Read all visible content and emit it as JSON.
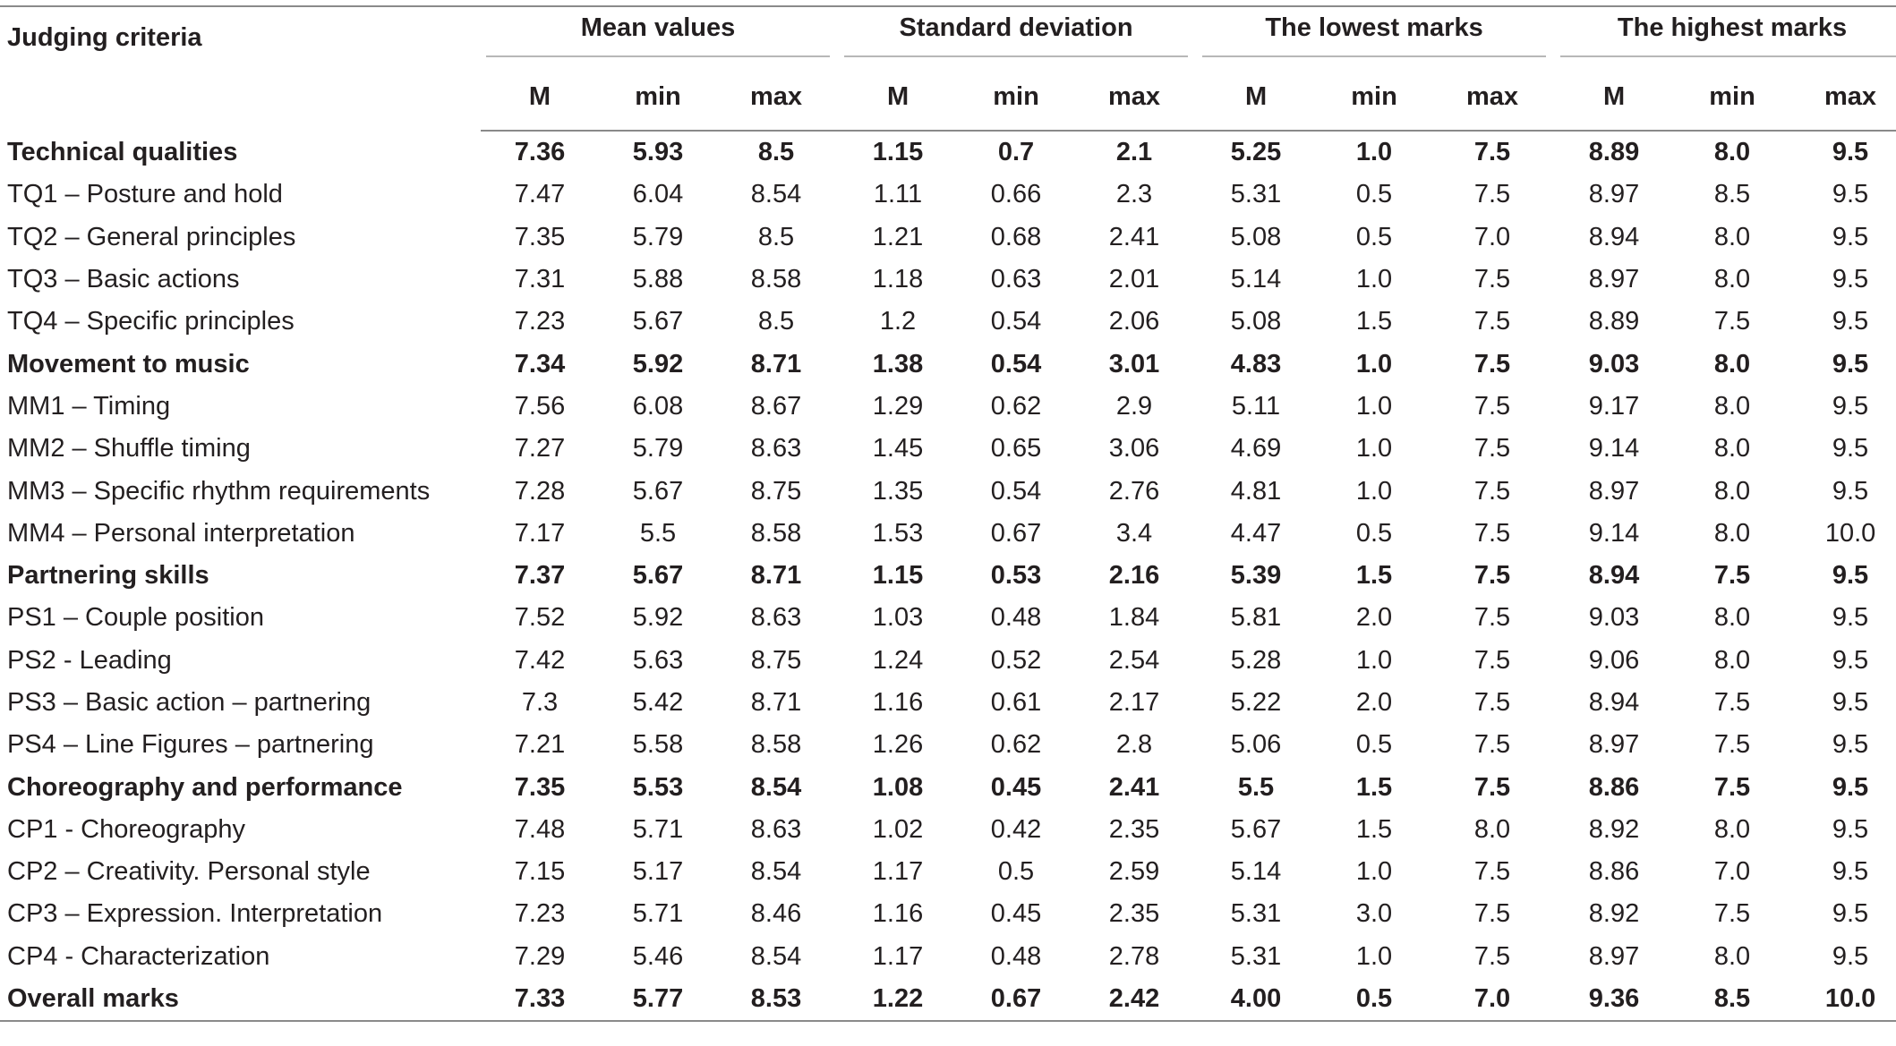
{
  "table": {
    "criteria_header": "Judging criteria",
    "groups": [
      "Mean values",
      "Standard deviation",
      "The lowest marks",
      "The highest marks"
    ],
    "subheaders": [
      "M",
      "min",
      "max",
      "M",
      "min",
      "max",
      "M",
      "min",
      "max",
      "M",
      "min",
      "max"
    ],
    "rows": [
      {
        "label": "Technical qualities",
        "bold": true,
        "values": [
          "7.36",
          "5.93",
          "8.5",
          "1.15",
          "0.7",
          "2.1",
          "5.25",
          "1.0",
          "7.5",
          "8.89",
          "8.0",
          "9.5"
        ]
      },
      {
        "label": "TQ1 – Posture and hold",
        "bold": false,
        "values": [
          "7.47",
          "6.04",
          "8.54",
          "1.11",
          "0.66",
          "2.3",
          "5.31",
          "0.5",
          "7.5",
          "8.97",
          "8.5",
          "9.5"
        ]
      },
      {
        "label": "TQ2 – General principles",
        "bold": false,
        "values": [
          "7.35",
          "5.79",
          "8.5",
          "1.21",
          "0.68",
          "2.41",
          "5.08",
          "0.5",
          "7.0",
          "8.94",
          "8.0",
          "9.5"
        ]
      },
      {
        "label": "TQ3 – Basic actions",
        "bold": false,
        "values": [
          "7.31",
          "5.88",
          "8.58",
          "1.18",
          "0.63",
          "2.01",
          "5.14",
          "1.0",
          "7.5",
          "8.97",
          "8.0",
          "9.5"
        ]
      },
      {
        "label": "TQ4 – Specific principles",
        "bold": false,
        "values": [
          "7.23",
          "5.67",
          "8.5",
          "1.2",
          "0.54",
          "2.06",
          "5.08",
          "1.5",
          "7.5",
          "8.89",
          "7.5",
          "9.5"
        ]
      },
      {
        "label": "Movement to music",
        "bold": true,
        "values": [
          "7.34",
          "5.92",
          "8.71",
          "1.38",
          "0.54",
          "3.01",
          "4.83",
          "1.0",
          "7.5",
          "9.03",
          "8.0",
          "9.5"
        ]
      },
      {
        "label": "MM1 – Timing",
        "bold": false,
        "values": [
          "7.56",
          "6.08",
          "8.67",
          "1.29",
          "0.62",
          "2.9",
          "5.11",
          "1.0",
          "7.5",
          "9.17",
          "8.0",
          "9.5"
        ]
      },
      {
        "label": "MM2 – Shuffle timing",
        "bold": false,
        "values": [
          "7.27",
          "5.79",
          "8.63",
          "1.45",
          "0.65",
          "3.06",
          "4.69",
          "1.0",
          "7.5",
          "9.14",
          "8.0",
          "9.5"
        ]
      },
      {
        "label": "MM3 – Specific rhythm requirements",
        "bold": false,
        "values": [
          "7.28",
          "5.67",
          "8.75",
          "1.35",
          "0.54",
          "2.76",
          "4.81",
          "1.0",
          "7.5",
          "8.97",
          "8.0",
          "9.5"
        ]
      },
      {
        "label": "MM4 – Personal interpretation",
        "bold": false,
        "values": [
          "7.17",
          "5.5",
          "8.58",
          "1.53",
          "0.67",
          "3.4",
          "4.47",
          "0.5",
          "7.5",
          "9.14",
          "8.0",
          "10.0"
        ]
      },
      {
        "label": "Partnering skills",
        "bold": true,
        "values": [
          "7.37",
          "5.67",
          "8.71",
          "1.15",
          "0.53",
          "2.16",
          "5.39",
          "1.5",
          "7.5",
          "8.94",
          "7.5",
          "9.5"
        ]
      },
      {
        "label": "PS1 – Couple position",
        "bold": false,
        "values": [
          "7.52",
          "5.92",
          "8.63",
          "1.03",
          "0.48",
          "1.84",
          "5.81",
          "2.0",
          "7.5",
          "9.03",
          "8.0",
          "9.5"
        ]
      },
      {
        "label": "PS2 - Leading",
        "bold": false,
        "values": [
          "7.42",
          "5.63",
          "8.75",
          "1.24",
          "0.52",
          "2.54",
          "5.28",
          "1.0",
          "7.5",
          "9.06",
          "8.0",
          "9.5"
        ]
      },
      {
        "label": "PS3 – Basic action – partnering",
        "bold": false,
        "values": [
          "7.3",
          "5.42",
          "8.71",
          "1.16",
          "0.61",
          "2.17",
          "5.22",
          "2.0",
          "7.5",
          "8.94",
          "7.5",
          "9.5"
        ]
      },
      {
        "label": "PS4 – Line Figures – partnering",
        "bold": false,
        "values": [
          "7.21",
          "5.58",
          "8.58",
          "1.26",
          "0.62",
          "2.8",
          "5.06",
          "0.5",
          "7.5",
          "8.97",
          "7.5",
          "9.5"
        ]
      },
      {
        "label": "Choreography and performance",
        "bold": true,
        "values": [
          "7.35",
          "5.53",
          "8.54",
          "1.08",
          "0.45",
          "2.41",
          "5.5",
          "1.5",
          "7.5",
          "8.86",
          "7.5",
          "9.5"
        ]
      },
      {
        "label": "CP1 - Choreography",
        "bold": false,
        "values": [
          "7.48",
          "5.71",
          "8.63",
          "1.02",
          "0.42",
          "2.35",
          "5.67",
          "1.5",
          "8.0",
          "8.92",
          "8.0",
          "9.5"
        ]
      },
      {
        "label": "CP2 – Creativity. Personal style",
        "bold": false,
        "values": [
          "7.15",
          "5.17",
          "8.54",
          "1.17",
          "0.5",
          "2.59",
          "5.14",
          "1.0",
          "7.5",
          "8.86",
          "7.0",
          "9.5"
        ]
      },
      {
        "label": "CP3 – Expression. Interpretation",
        "bold": false,
        "values": [
          "7.23",
          "5.71",
          "8.46",
          "1.16",
          "0.45",
          "2.35",
          "5.31",
          "3.0",
          "7.5",
          "8.92",
          "7.5",
          "9.5"
        ]
      },
      {
        "label": "CP4 - Characterization",
        "bold": false,
        "values": [
          "7.29",
          "5.46",
          "8.54",
          "1.17",
          "0.48",
          "2.78",
          "5.31",
          "1.0",
          "7.5",
          "8.97",
          "8.0",
          "9.5"
        ]
      },
      {
        "label": "Overall marks",
        "bold": true,
        "values": [
          "7.33",
          "5.77",
          "8.53",
          "1.22",
          "0.67",
          "2.42",
          "4.00",
          "0.5",
          "7.0",
          "9.36",
          "8.5",
          "10.0"
        ]
      }
    ]
  }
}
